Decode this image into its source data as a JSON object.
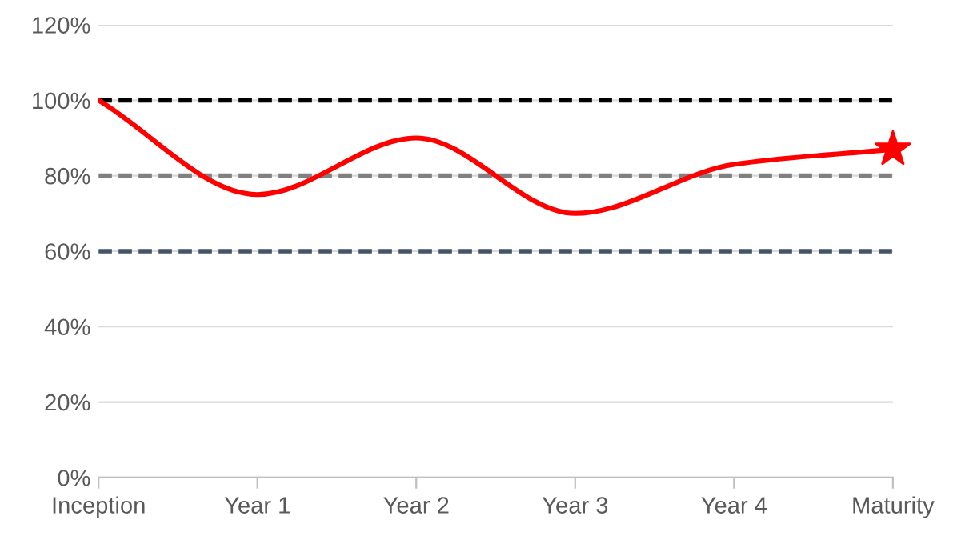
{
  "chart_data": {
    "type": "line",
    "categories": [
      "Inception",
      "Year 1",
      "Year 2",
      "Year 3",
      "Year 4",
      "Maturity"
    ],
    "series": [
      {
        "color": "#ff0000",
        "marker": "none",
        "values": [
          100,
          75,
          90,
          70,
          83,
          87
        ]
      },
      {
        "type": "scatter",
        "color": "#ff0000",
        "marker": "star",
        "values": [
          null,
          null,
          null,
          null,
          null,
          87
        ]
      }
    ],
    "ylim": [
      0,
      120
    ],
    "yticks": [
      {
        "value": 0,
        "label": "0%"
      },
      {
        "value": 20,
        "label": "20%"
      },
      {
        "value": 40,
        "label": "40%"
      },
      {
        "value": 60,
        "label": "60%"
      },
      {
        "value": 80,
        "label": "80%"
      },
      {
        "value": 100,
        "label": "100%"
      },
      {
        "value": 120,
        "label": "120%"
      }
    ],
    "ref_lines": [
      {
        "axis": "y",
        "value": 100,
        "color": "#000000",
        "line_style": "dashed"
      },
      {
        "axis": "y",
        "value": 80,
        "color": "#808080",
        "line_style": "dashed"
      },
      {
        "axis": "y",
        "value": 60,
        "color": "#44546a",
        "line_style": "dashed"
      }
    ],
    "grid": "y",
    "legend": false
  }
}
